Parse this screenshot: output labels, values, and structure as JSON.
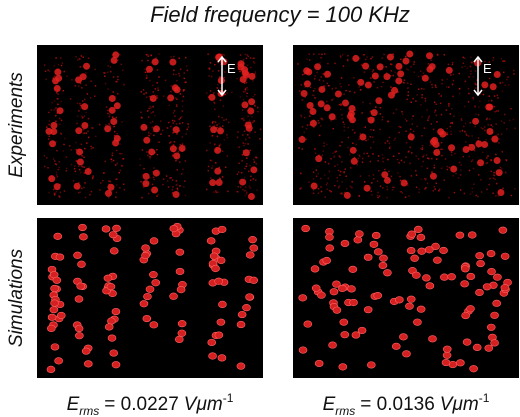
{
  "title": "Field frequency = 100 KHz",
  "rows": [
    {
      "label": "Experiments"
    },
    {
      "label": "Simulations"
    }
  ],
  "columns": [
    {
      "field_label": "E",
      "symbol": "E",
      "subscript": "rms",
      "value": "= 0.0227",
      "unit": "Vμm",
      "exponent": "-1"
    },
    {
      "field_label": "E",
      "symbol": "E",
      "subscript": "rms",
      "value": "= 0.0136",
      "unit": "Vμm",
      "exponent": "-1"
    }
  ]
}
